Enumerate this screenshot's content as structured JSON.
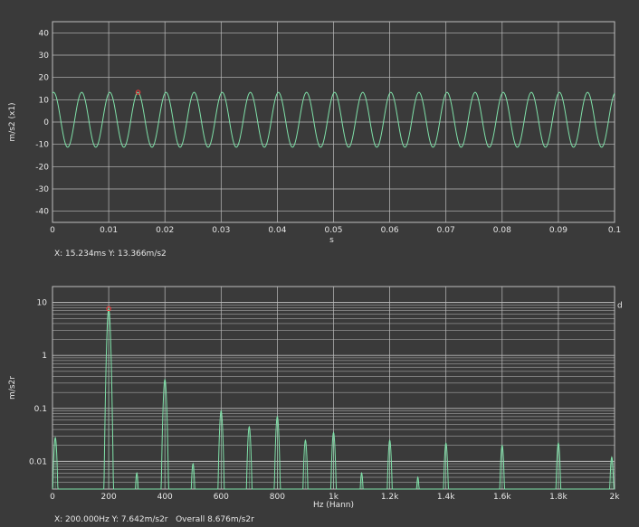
{
  "colors": {
    "background": "#3a3a3a",
    "plot_background": "#3a3a3a",
    "grid": "#bdbdbd",
    "trace": "#7fe0a8",
    "cursor": "#ff3b3b"
  },
  "time_panel": {
    "readout": "X: 15.234ms Y: 13.366m/s2"
  },
  "spectrum_panel": {
    "readout": "X: 200.000Hz Y: 7.642m/s2r   Overall 8.676m/s2r",
    "right_marker": "d"
  },
  "chart_data": [
    {
      "type": "line",
      "xlabel": "s",
      "ylabel": "m/s2 (x1)",
      "xlim": [
        0,
        0.1
      ],
      "ylim": [
        -45,
        45
      ],
      "x_ticks": [
        0,
        0.01,
        0.02,
        0.03,
        0.04,
        0.05,
        0.06,
        0.07,
        0.08,
        0.09,
        0.1
      ],
      "x_tick_labels": [
        "0",
        "0.01",
        "0.02",
        "0.03",
        "0.04",
        "0.05",
        "0.06",
        "0.07",
        "0.08",
        "0.09",
        "0.1"
      ],
      "y_ticks": [
        -40,
        -30,
        -20,
        -10,
        0,
        10,
        20,
        30,
        40
      ],
      "y_tick_labels": [
        "-40",
        "-30",
        "-20",
        "-10",
        "0",
        "10",
        "20",
        "30",
        "40"
      ],
      "grid": true,
      "series": [
        {
          "waveform": "sine",
          "amplitude": 12.3,
          "offset": 1.0,
          "frequency_hz": 200,
          "peak_time": 0.0152
        }
      ],
      "cursor": {
        "x": 0.015234,
        "y": 13.366
      }
    },
    {
      "type": "line",
      "xlabel": "Hz (Hann)",
      "ylabel": "m/s2r",
      "xscale": "linear",
      "yscale": "log",
      "xlim": [
        0,
        2000
      ],
      "ylim": [
        0.003,
        20
      ],
      "x_ticks": [
        0,
        200,
        400,
        600,
        800,
        1000,
        1200,
        1400,
        1600,
        1800,
        2000
      ],
      "x_tick_labels": [
        "0",
        "200",
        "400",
        "600",
        "800",
        "1k",
        "1.2k",
        "1.4k",
        "1.6k",
        "1.8k",
        "2k"
      ],
      "y_ticks": [
        0.01,
        0.1,
        1,
        10
      ],
      "y_tick_labels": [
        "0.01",
        "0.1",
        "1",
        "10"
      ],
      "grid": true,
      "peaks": [
        {
          "x": 10,
          "y": 0.028
        },
        {
          "x": 200,
          "y": 7.642
        },
        {
          "x": 300,
          "y": 0.006
        },
        {
          "x": 400,
          "y": 0.35
        },
        {
          "x": 500,
          "y": 0.009
        },
        {
          "x": 600,
          "y": 0.09
        },
        {
          "x": 700,
          "y": 0.045
        },
        {
          "x": 800,
          "y": 0.07
        },
        {
          "x": 900,
          "y": 0.025
        },
        {
          "x": 1000,
          "y": 0.035
        },
        {
          "x": 1100,
          "y": 0.006
        },
        {
          "x": 1200,
          "y": 0.025
        },
        {
          "x": 1300,
          "y": 0.005
        },
        {
          "x": 1400,
          "y": 0.022
        },
        {
          "x": 1600,
          "y": 0.02
        },
        {
          "x": 1800,
          "y": 0.022
        },
        {
          "x": 1990,
          "y": 0.012
        }
      ],
      "cursor": {
        "x": 200,
        "y": 7.642
      }
    }
  ]
}
